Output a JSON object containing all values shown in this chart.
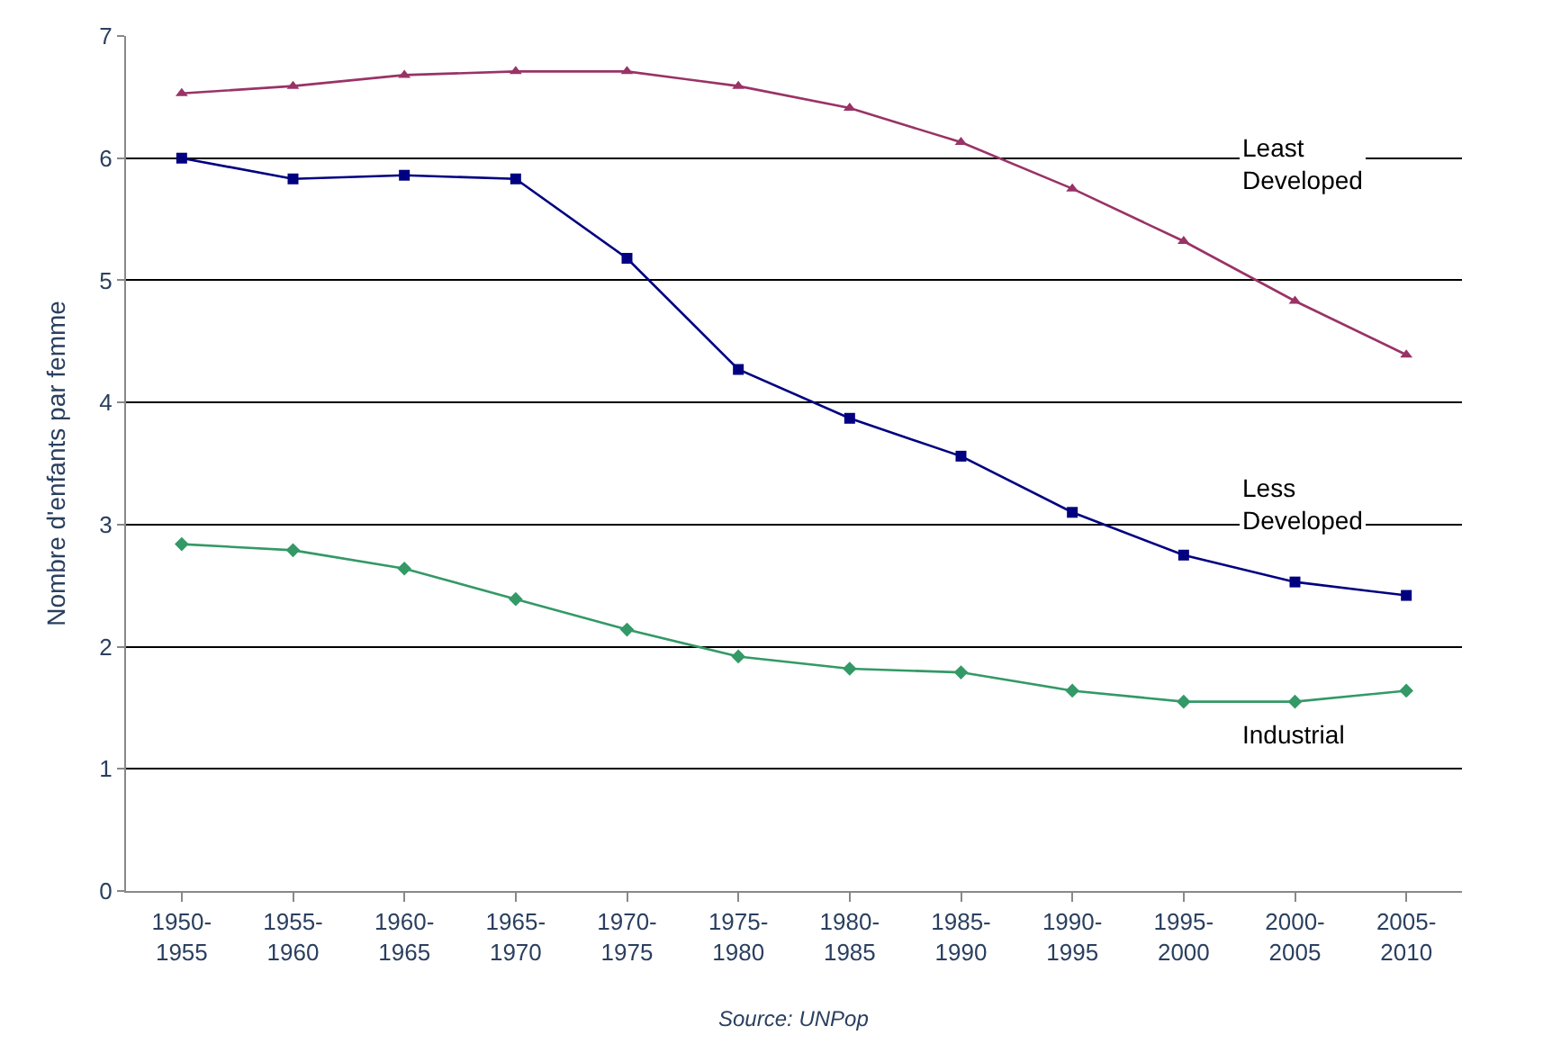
{
  "chart_data": {
    "type": "line",
    "ylabel": "Nombre d'enfants par femme",
    "categories": [
      "1950-1955",
      "1955-1960",
      "1960-1965",
      "1965-1970",
      "1970-1975",
      "1975-1980",
      "1980-1985",
      "1985-1990",
      "1990-1995",
      "1995-2000",
      "2000-2005",
      "2005-2010"
    ],
    "series": [
      {
        "name": "Least Developed",
        "color": "#993366",
        "marker": "triangle",
        "values": [
          6.53,
          6.59,
          6.68,
          6.71,
          6.71,
          6.59,
          6.41,
          6.13,
          5.75,
          5.32,
          4.83,
          4.39
        ]
      },
      {
        "name": "Less Developed",
        "color": "#000080",
        "marker": "square",
        "values": [
          6.0,
          5.83,
          5.86,
          5.83,
          5.18,
          4.27,
          3.87,
          3.56,
          3.1,
          2.75,
          2.53,
          2.42
        ]
      },
      {
        "name": "Industrial",
        "color": "#339966",
        "marker": "diamond",
        "values": [
          2.84,
          2.79,
          2.64,
          2.39,
          2.14,
          1.92,
          1.82,
          1.79,
          1.64,
          1.55,
          1.55,
          1.64
        ]
      }
    ],
    "ylim": [
      0,
      7
    ],
    "yticks": [
      0,
      1,
      2,
      3,
      4,
      5,
      6,
      7
    ],
    "grid": "y",
    "legend": false,
    "annotations": [
      "Source: UNPop"
    ]
  }
}
